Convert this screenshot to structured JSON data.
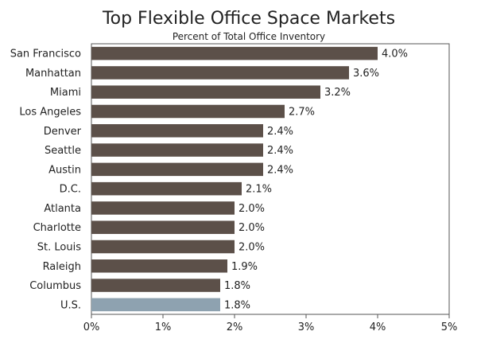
{
  "chart_data": {
    "type": "bar",
    "orientation": "horizontal",
    "title": "Top Flexible Office Space Markets",
    "subtitle": "Percent of Total Office Inventory",
    "categories": [
      "San Francisco",
      "Manhattan",
      "Miami",
      "Los Angeles",
      "Denver",
      "Seattle",
      "Austin",
      "D.C.",
      "Atlanta",
      "Charlotte",
      "St. Louis",
      "Raleigh",
      "Columbus",
      "U.S."
    ],
    "values": [
      4.0,
      3.6,
      3.2,
      2.7,
      2.4,
      2.4,
      2.4,
      2.1,
      2.0,
      2.0,
      2.0,
      1.9,
      1.8,
      1.8
    ],
    "value_labels": [
      "4.0%",
      "3.6%",
      "3.2%",
      "2.7%",
      "2.4%",
      "2.4%",
      "2.4%",
      "2.1%",
      "2.0%",
      "2.0%",
      "2.0%",
      "1.9%",
      "1.8%",
      "1.8%"
    ],
    "xlim": [
      0,
      5
    ],
    "xticks": [
      0,
      1,
      2,
      3,
      4,
      5
    ],
    "xtick_labels": [
      "0%",
      "1%",
      "2%",
      "3%",
      "4%",
      "5%"
    ],
    "grid": false,
    "colors": {
      "bar": "#5c5049",
      "highlight_bar": "#8ea2b0",
      "highlight_category": "U.S."
    }
  }
}
